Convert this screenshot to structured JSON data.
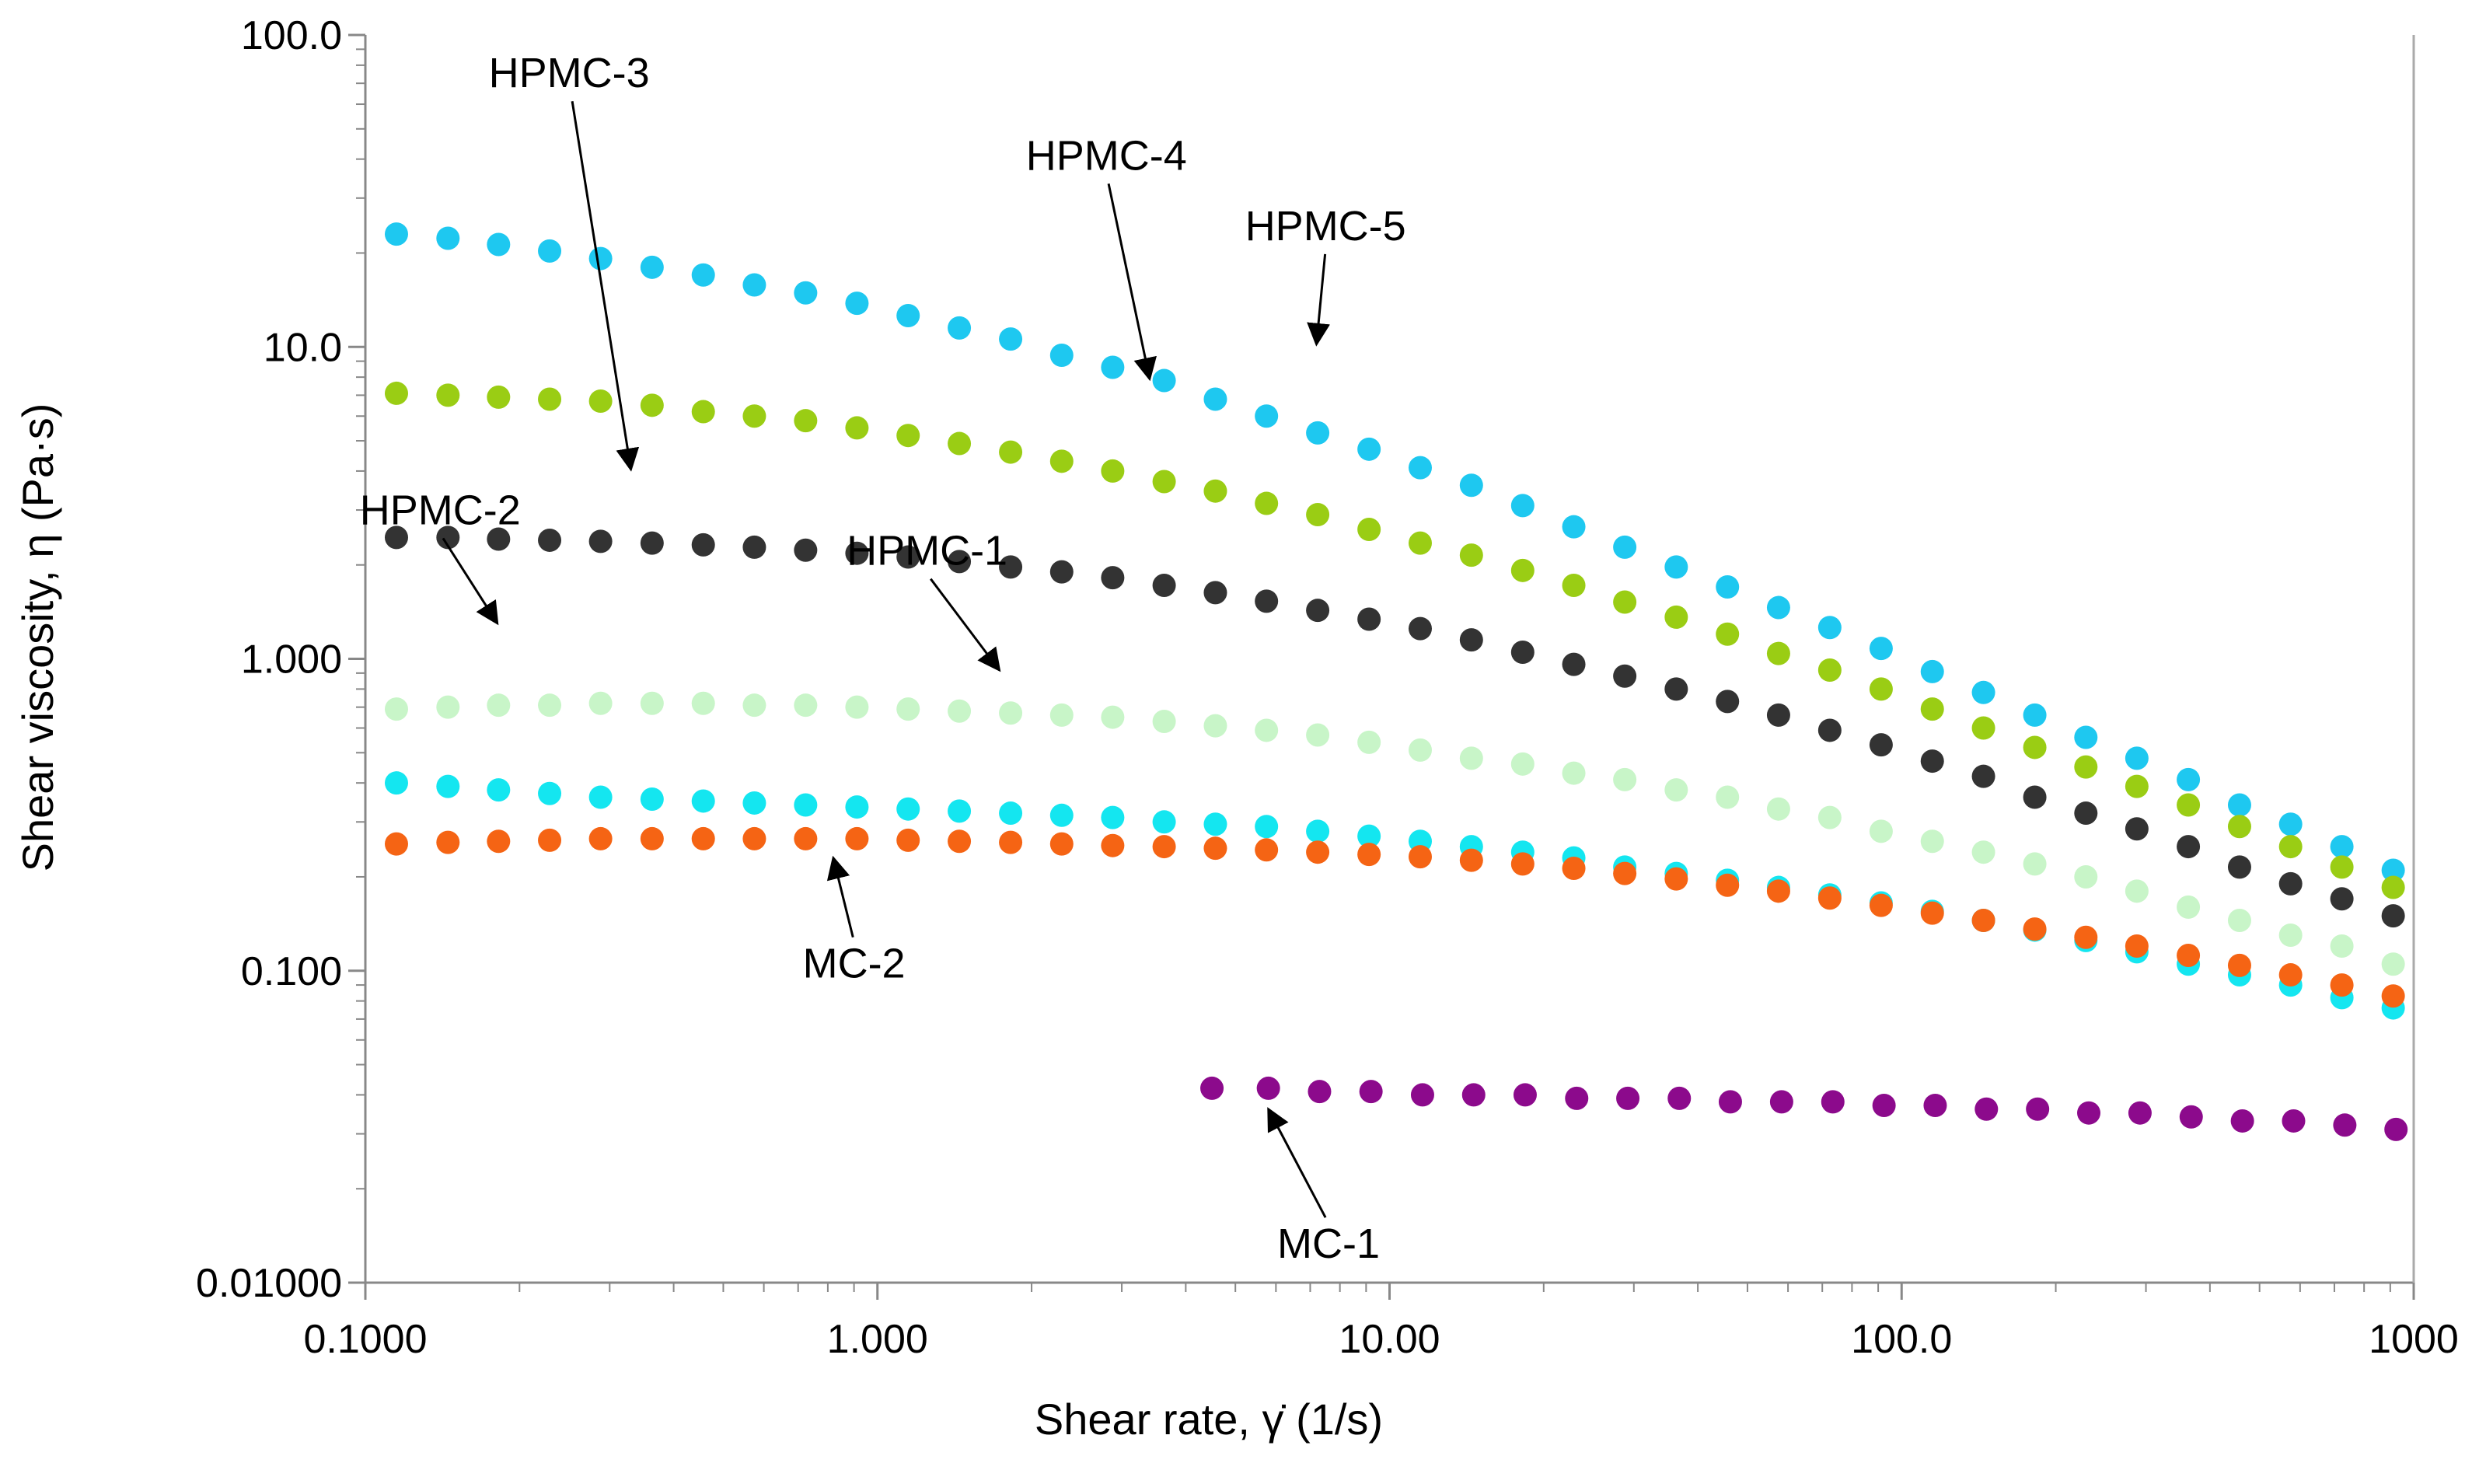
{
  "chart_data": {
    "type": "scatter",
    "title": "",
    "xlabel": "Shear rate, γ̇ (1/s)",
    "ylabel": "Shear viscosity, η (Pa·s)",
    "x_scale": "log",
    "y_scale": "log",
    "xlim": [
      0.1,
      1000
    ],
    "ylim": [
      0.01,
      100
    ],
    "grid": false,
    "x_ticks": [
      {
        "value": 0.1,
        "label": "0.1000"
      },
      {
        "value": 1,
        "label": "1.000"
      },
      {
        "value": 10,
        "label": "10.00"
      },
      {
        "value": 100,
        "label": "100.0"
      },
      {
        "value": 1000,
        "label": "1000"
      }
    ],
    "y_ticks": [
      {
        "value": 0.01,
        "label": "0.01000"
      },
      {
        "value": 0.1,
        "label": "0.100"
      },
      {
        "value": 1,
        "label": "1.000"
      },
      {
        "value": 10,
        "label": "10.0"
      },
      {
        "value": 100,
        "label": "100.0"
      }
    ],
    "series": [
      {
        "name": "HPMC-5",
        "color": "#1ec8f0",
        "x": [
          0.115,
          0.145,
          0.182,
          0.229,
          0.288,
          0.363,
          0.457,
          0.575,
          0.724,
          0.912,
          1.148,
          1.445,
          1.82,
          2.29,
          2.88,
          3.63,
          4.57,
          5.75,
          7.24,
          9.12,
          11.48,
          14.45,
          18.2,
          22.9,
          28.8,
          36.3,
          45.7,
          57.5,
          72.4,
          91.2,
          114.8,
          144.5,
          182,
          229,
          288,
          363,
          457,
          575,
          724,
          912
        ],
        "y": [
          23.0,
          22.3,
          21.3,
          20.3,
          19.2,
          18.0,
          17.0,
          15.8,
          14.9,
          13.8,
          12.6,
          11.5,
          10.6,
          9.4,
          8.6,
          7.8,
          6.8,
          6.0,
          5.3,
          4.7,
          4.1,
          3.6,
          3.1,
          2.65,
          2.28,
          1.97,
          1.7,
          1.46,
          1.26,
          1.08,
          0.91,
          0.78,
          0.66,
          0.56,
          0.48,
          0.41,
          0.34,
          0.295,
          0.25,
          0.21
        ]
      },
      {
        "name": "HPMC-4",
        "color": "#9acd14",
        "x": [
          0.115,
          0.145,
          0.182,
          0.229,
          0.288,
          0.363,
          0.457,
          0.575,
          0.724,
          0.912,
          1.148,
          1.445,
          1.82,
          2.29,
          2.88,
          3.63,
          4.57,
          5.75,
          7.24,
          9.12,
          11.48,
          14.45,
          18.2,
          22.9,
          28.8,
          36.3,
          45.7,
          57.5,
          72.4,
          91.2,
          114.8,
          144.5,
          182,
          229,
          288,
          363,
          457,
          575,
          724,
          912
        ],
        "y": [
          7.1,
          7.0,
          6.9,
          6.8,
          6.7,
          6.5,
          6.2,
          6.0,
          5.8,
          5.5,
          5.2,
          4.9,
          4.6,
          4.3,
          4.0,
          3.7,
          3.45,
          3.15,
          2.9,
          2.6,
          2.35,
          2.15,
          1.92,
          1.72,
          1.52,
          1.36,
          1.2,
          1.04,
          0.92,
          0.8,
          0.69,
          0.6,
          0.52,
          0.45,
          0.39,
          0.34,
          0.29,
          0.25,
          0.215,
          0.185
        ]
      },
      {
        "name": "HPMC-3",
        "color": "#333333",
        "x": [
          0.115,
          0.145,
          0.182,
          0.229,
          0.288,
          0.363,
          0.457,
          0.575,
          0.724,
          0.912,
          1.148,
          1.445,
          1.82,
          2.29,
          2.88,
          3.63,
          4.57,
          5.75,
          7.24,
          9.12,
          11.48,
          14.45,
          18.2,
          22.9,
          28.8,
          36.3,
          45.7,
          57.5,
          72.4,
          91.2,
          114.8,
          144.5,
          182,
          229,
          288,
          363,
          457,
          575,
          724,
          912
        ],
        "y": [
          2.45,
          2.45,
          2.42,
          2.4,
          2.38,
          2.35,
          2.32,
          2.28,
          2.23,
          2.18,
          2.12,
          2.05,
          1.97,
          1.9,
          1.82,
          1.72,
          1.63,
          1.53,
          1.43,
          1.34,
          1.25,
          1.15,
          1.05,
          0.96,
          0.88,
          0.8,
          0.73,
          0.66,
          0.59,
          0.53,
          0.47,
          0.42,
          0.36,
          0.32,
          0.285,
          0.25,
          0.215,
          0.19,
          0.17,
          0.15
        ]
      },
      {
        "name": "HPMC-2",
        "color": "#c8f5c8",
        "x": [
          0.115,
          0.145,
          0.182,
          0.229,
          0.288,
          0.363,
          0.457,
          0.575,
          0.724,
          0.912,
          1.148,
          1.445,
          1.82,
          2.29,
          2.88,
          3.63,
          4.57,
          5.75,
          7.24,
          9.12,
          11.48,
          14.45,
          18.2,
          22.9,
          28.8,
          36.3,
          45.7,
          57.5,
          72.4,
          91.2,
          114.8,
          144.5,
          182,
          229,
          288,
          363,
          457,
          575,
          724,
          912
        ],
        "y": [
          0.69,
          0.7,
          0.71,
          0.71,
          0.72,
          0.72,
          0.72,
          0.71,
          0.71,
          0.7,
          0.69,
          0.68,
          0.67,
          0.66,
          0.65,
          0.63,
          0.61,
          0.59,
          0.57,
          0.54,
          0.51,
          0.48,
          0.46,
          0.43,
          0.41,
          0.38,
          0.36,
          0.33,
          0.31,
          0.28,
          0.26,
          0.24,
          0.22,
          0.2,
          0.18,
          0.16,
          0.145,
          0.13,
          0.12,
          0.105
        ]
      },
      {
        "name": "HPMC-1",
        "color": "#14e6f0",
        "x": [
          0.115,
          0.145,
          0.182,
          0.229,
          0.288,
          0.363,
          0.457,
          0.575,
          0.724,
          0.912,
          1.148,
          1.445,
          1.82,
          2.29,
          2.88,
          3.63,
          4.57,
          5.75,
          7.24,
          9.12,
          11.48,
          14.45,
          18.2,
          22.9,
          28.8,
          36.3,
          45.7,
          57.5,
          72.4,
          91.2,
          114.8,
          144.5,
          182,
          229,
          288,
          363,
          457,
          575,
          724,
          912
        ],
        "y": [
          0.4,
          0.39,
          0.38,
          0.37,
          0.36,
          0.355,
          0.35,
          0.345,
          0.34,
          0.335,
          0.33,
          0.325,
          0.32,
          0.315,
          0.31,
          0.3,
          0.295,
          0.29,
          0.28,
          0.27,
          0.26,
          0.25,
          0.24,
          0.23,
          0.215,
          0.205,
          0.195,
          0.185,
          0.175,
          0.165,
          0.155,
          0.145,
          0.135,
          0.125,
          0.115,
          0.105,
          0.097,
          0.09,
          0.082,
          0.076
        ]
      },
      {
        "name": "MC-2",
        "color": "#f56414",
        "x": [
          0.115,
          0.145,
          0.182,
          0.229,
          0.288,
          0.363,
          0.457,
          0.575,
          0.724,
          0.912,
          1.148,
          1.445,
          1.82,
          2.29,
          2.88,
          3.63,
          4.57,
          5.75,
          7.24,
          9.12,
          11.48,
          14.45,
          18.2,
          22.9,
          28.8,
          36.3,
          45.7,
          57.5,
          72.4,
          91.2,
          114.8,
          144.5,
          182,
          229,
          288,
          363,
          457,
          575,
          724,
          912
        ],
        "y": [
          0.255,
          0.258,
          0.26,
          0.262,
          0.265,
          0.265,
          0.265,
          0.265,
          0.265,
          0.265,
          0.262,
          0.26,
          0.258,
          0.255,
          0.252,
          0.25,
          0.247,
          0.244,
          0.24,
          0.236,
          0.232,
          0.226,
          0.22,
          0.213,
          0.205,
          0.197,
          0.188,
          0.18,
          0.171,
          0.162,
          0.153,
          0.145,
          0.136,
          0.128,
          0.12,
          0.112,
          0.104,
          0.097,
          0.09,
          0.083
        ]
      },
      {
        "name": "MC-1",
        "color": "#8c0a8c",
        "x": [
          4.5,
          5.8,
          7.3,
          9.2,
          11.6,
          14.6,
          18.4,
          23.2,
          29.2,
          36.8,
          46.3,
          58.3,
          73.4,
          92.4,
          116.3,
          146.4,
          184.3,
          232,
          292.1,
          367.7,
          462.9,
          582.7,
          733.6,
          923.5
        ],
        "y": [
          0.042,
          0.042,
          0.041,
          0.041,
          0.04,
          0.04,
          0.04,
          0.039,
          0.039,
          0.039,
          0.038,
          0.038,
          0.038,
          0.037,
          0.037,
          0.036,
          0.036,
          0.035,
          0.035,
          0.034,
          0.033,
          0.033,
          0.032,
          0.031
        ]
      }
    ],
    "annotations": [
      {
        "text": "HPMC-5",
        "series": "HPMC-5",
        "label_at": [
          7.5,
          22.0
        ],
        "arrow_to": [
          7.2,
          10.2
        ]
      },
      {
        "text": "HPMC-4",
        "series": "HPMC-4",
        "label_at": [
          2.8,
          37.0
        ],
        "arrow_to": [
          3.4,
          7.9
        ]
      },
      {
        "text": "HPMC-3",
        "series": "HPMC-3",
        "label_at": [
          0.25,
          68.0
        ],
        "arrow_to": [
          0.33,
          4.05
        ]
      },
      {
        "text": "HPMC-2",
        "series": "HPMC-2",
        "label_at": [
          0.14,
          2.7
        ],
        "arrow_to": [
          0.181,
          1.3
        ]
      },
      {
        "text": "HPMC-1",
        "series": "HPMC-1",
        "label_at": [
          1.25,
          2.0
        ],
        "arrow_to": [
          1.73,
          0.92
        ]
      },
      {
        "text": "MC-2",
        "series": "MC-2",
        "label_at": [
          0.9,
          0.095
        ],
        "arrow_to": [
          0.82,
          0.23
        ]
      },
      {
        "text": "MC-1",
        "series": "MC-1",
        "label_at": [
          7.6,
          0.012
        ],
        "arrow_to": [
          5.8,
          0.036
        ]
      }
    ]
  }
}
